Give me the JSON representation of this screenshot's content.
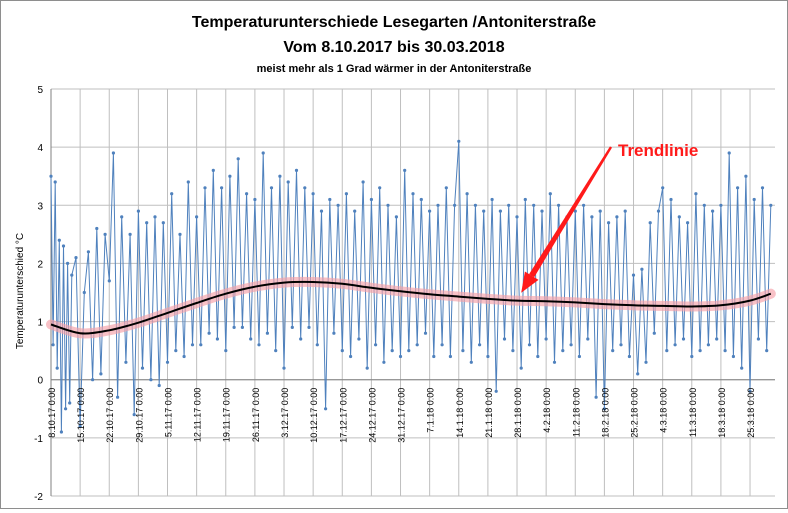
{
  "chart_data": {
    "type": "line",
    "title": "Temperaturunterschiede Lesegarten /Antoniterstraße",
    "subtitle": "Vom 8.10.2017 bis 30.03.2018",
    "note": "meist mehr als 1 Grad wärmer in der Antoniterstraße",
    "ylabel": "Temperaturunterschied °C",
    "xlabel": "",
    "ylim": [
      -2,
      5
    ],
    "yticks": [
      "5",
      "4",
      "3",
      "2",
      "1",
      "0",
      "-1",
      "-2"
    ],
    "grid": true,
    "x_start": "8.10.17",
    "x_end": "30.3.18",
    "x_ticks": [
      "8.10.17 0:00",
      "15.10.17 0:00",
      "22.10.17 0:00",
      "29.10.17 0:00",
      "5.11.17 0:00",
      "12.11.17 0:00",
      "19.11.17 0:00",
      "26.11.17 0:00",
      "3.12.17 0:00",
      "10.12.17 0:00",
      "17.12.17 0:00",
      "24.12.17 0:00",
      "31.12.17 0:00",
      "7.1.18 0:00",
      "14.1.18 0:00",
      "21.1.18 0:00",
      "28.1.18 0:00",
      "4.2.18 0:00",
      "11.2.18 0:00",
      "18.2.18 0:00",
      "25.2.18 0:00",
      "4.3.18 0:00",
      "11.3.18 0:00",
      "18.3.18 0:00",
      "25.3.18 0:00"
    ],
    "series": [
      {
        "name": "",
        "color": "#4f81bd",
        "description_values_sampled": true,
        "x": [
          "8.10.17",
          "8.10.17",
          "9.10.17",
          "9.10.17",
          "10.10.17",
          "10.10.17",
          "11.10.17",
          "11.10.17",
          "12.10.17",
          "12.10.17",
          "13.10.17",
          "14.10.17",
          "15.10.17",
          "16.10.17",
          "17.10.17",
          "18.10.17",
          "19.10.17",
          "20.10.17",
          "21.10.17",
          "22.10.17",
          "23.10.17",
          "24.10.17",
          "25.10.17",
          "26.10.17",
          "27.10.17",
          "28.10.17",
          "29.10.17",
          "30.10.17",
          "31.10.17",
          "1.11.17",
          "2.11.17",
          "3.11.17",
          "4.11.17",
          "5.11.17",
          "6.11.17",
          "7.11.17",
          "8.11.17",
          "9.11.17",
          "10.11.17",
          "11.11.17",
          "12.11.17",
          "13.11.17",
          "14.11.17",
          "15.11.17",
          "16.11.17",
          "17.11.17",
          "18.11.17",
          "19.11.17",
          "20.11.17",
          "21.11.17",
          "22.11.17",
          "23.11.17",
          "24.11.17",
          "25.11.17",
          "26.11.17",
          "27.11.17",
          "28.11.17",
          "29.11.17",
          "30.11.17",
          "1.12.17",
          "2.12.17",
          "3.12.17",
          "4.12.17",
          "5.12.17",
          "6.12.17",
          "7.12.17",
          "8.12.17",
          "9.12.17",
          "10.12.17",
          "11.12.17",
          "12.12.17",
          "13.12.17",
          "14.12.17",
          "15.12.17",
          "16.12.17",
          "17.12.17",
          "18.12.17",
          "19.12.17",
          "20.12.17",
          "21.12.17",
          "22.12.17",
          "23.12.17",
          "24.12.17",
          "25.12.17",
          "26.12.17",
          "27.12.17",
          "28.12.17",
          "29.12.17",
          "30.12.17",
          "31.12.17",
          "1.1.18",
          "2.1.18",
          "3.1.18",
          "4.1.18",
          "5.1.18",
          "6.1.18",
          "7.1.18",
          "8.1.18",
          "9.1.18",
          "10.1.18",
          "11.1.18",
          "12.1.18",
          "13.1.18",
          "14.1.18",
          "15.1.18",
          "16.1.18",
          "17.1.18",
          "18.1.18",
          "19.1.18",
          "20.1.18",
          "21.1.18",
          "22.1.18",
          "23.1.18",
          "24.1.18",
          "25.1.18",
          "26.1.18",
          "27.1.18",
          "28.1.18",
          "29.1.18",
          "30.1.18",
          "31.1.18",
          "1.2.18",
          "2.2.18",
          "3.2.18",
          "4.2.18",
          "5.2.18",
          "6.2.18",
          "7.2.18",
          "8.2.18",
          "9.2.18",
          "10.2.18",
          "11.2.18",
          "12.2.18",
          "13.2.18",
          "14.2.18",
          "15.2.18",
          "16.2.18",
          "17.2.18",
          "18.2.18",
          "19.2.18",
          "20.2.18",
          "21.2.18",
          "22.2.18",
          "23.2.18",
          "24.2.18",
          "25.2.18",
          "26.2.18",
          "27.2.18",
          "28.2.18",
          "1.3.18",
          "2.3.18",
          "3.3.18",
          "4.3.18",
          "5.3.18",
          "6.3.18",
          "7.3.18",
          "8.3.18",
          "9.3.18",
          "10.3.18",
          "11.3.18",
          "12.3.18",
          "13.3.18",
          "14.3.18",
          "15.3.18",
          "16.3.18",
          "17.3.18",
          "18.3.18",
          "19.3.18",
          "20.3.18",
          "21.3.18",
          "22.3.18",
          "23.3.18",
          "24.3.18",
          "25.3.18",
          "26.3.18",
          "27.3.18",
          "28.3.18",
          "29.3.18",
          "30.3.18"
        ],
        "y": [
          3.5,
          0.6,
          3.4,
          0.2,
          2.4,
          -0.9,
          2.3,
          -0.5,
          2.0,
          -0.4,
          1.8,
          2.1,
          -0.8,
          1.5,
          2.2,
          0.0,
          2.6,
          0.1,
          2.5,
          1.7,
          3.9,
          -0.3,
          2.8,
          0.3,
          2.5,
          -0.6,
          2.9,
          0.2,
          2.7,
          0.0,
          2.8,
          -0.1,
          2.7,
          0.3,
          3.2,
          0.5,
          2.5,
          0.4,
          3.4,
          0.6,
          2.8,
          0.6,
          3.3,
          0.8,
          3.6,
          0.7,
          3.3,
          0.5,
          3.5,
          0.9,
          3.8,
          0.9,
          3.2,
          0.7,
          3.1,
          0.6,
          3.9,
          0.8,
          3.3,
          0.5,
          3.5,
          0.2,
          3.4,
          0.9,
          3.6,
          0.7,
          3.3,
          0.9,
          3.2,
          0.6,
          2.9,
          -0.5,
          3.1,
          0.8,
          3.0,
          0.5,
          3.2,
          0.4,
          2.9,
          0.7,
          3.4,
          0.2,
          3.1,
          0.6,
          3.3,
          0.3,
          3.0,
          0.5,
          2.8,
          0.4,
          3.6,
          0.5,
          3.2,
          0.6,
          3.1,
          0.8,
          2.9,
          0.4,
          3.0,
          0.6,
          3.3,
          0.4,
          3.0,
          4.1,
          0.5,
          3.2,
          0.3,
          3.0,
          0.6,
          2.9,
          0.4,
          3.1,
          -0.2,
          2.9,
          0.7,
          3.0,
          0.5,
          2.8,
          0.2,
          3.1,
          0.6,
          3.0,
          0.4,
          2.9,
          0.7,
          3.2,
          0.3,
          3.0,
          0.5,
          2.8,
          0.6,
          2.9,
          0.4,
          3.0,
          0.7,
          2.8,
          -0.3,
          2.9,
          -0.5,
          2.7,
          0.5,
          2.8,
          0.6,
          2.9,
          0.4,
          1.8,
          0.1,
          1.9,
          0.3,
          2.7,
          0.8,
          2.9,
          3.3,
          0.5,
          3.1,
          0.6,
          2.8,
          0.7,
          2.7,
          0.4,
          3.2,
          0.5,
          3.0,
          0.6,
          2.9,
          0.7,
          3.0,
          0.5,
          3.9,
          0.4,
          3.3,
          0.2,
          3.5,
          -0.2,
          3.1,
          0.7,
          3.3,
          0.5,
          3.0
        ]
      },
      {
        "name": "Trendlinie",
        "color": "#000000",
        "x": [
          "8.10.17",
          "15.10.17",
          "22.10.17",
          "29.10.17",
          "5.11.17",
          "12.11.17",
          "19.11.17",
          "26.11.17",
          "3.12.17",
          "10.12.17",
          "17.12.17",
          "24.12.17",
          "31.12.17",
          "7.1.18",
          "14.1.18",
          "21.1.18",
          "28.1.18",
          "4.2.18",
          "11.2.18",
          "18.2.18",
          "25.2.18",
          "4.3.18",
          "11.3.18",
          "18.3.18",
          "25.3.18",
          "30.3.18"
        ],
        "y": [
          0.95,
          0.8,
          0.85,
          0.98,
          1.15,
          1.32,
          1.48,
          1.6,
          1.67,
          1.68,
          1.65,
          1.58,
          1.52,
          1.47,
          1.43,
          1.39,
          1.36,
          1.35,
          1.33,
          1.3,
          1.28,
          1.27,
          1.26,
          1.28,
          1.36,
          1.48
        ]
      }
    ],
    "annotations": [
      {
        "text": "Trendlinie",
        "color": "#ff1a1a",
        "arrow_to": {
          "x": "29.1.18",
          "y": 1.6
        }
      }
    ]
  }
}
